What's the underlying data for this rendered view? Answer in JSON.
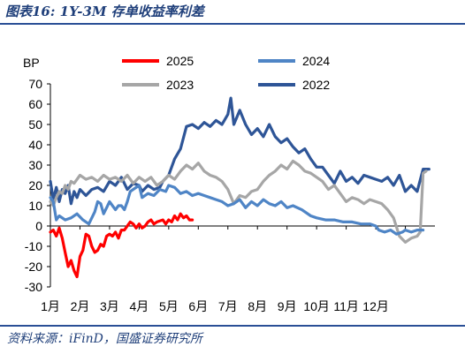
{
  "figure": {
    "title": "图表16:  1Y-3M 存单收益率利差",
    "source": "资料来源：iFinD，国盛证券研究所"
  },
  "chart_data": {
    "type": "line",
    "title": "1Y-3M 存单收益率利差",
    "ylabel": "BP",
    "xlabel": "",
    "ylim": [
      -30,
      70
    ],
    "yticks": [
      -30,
      -20,
      -10,
      0,
      10,
      20,
      30,
      40,
      50,
      60,
      70
    ],
    "xticks": [
      "1月",
      "2月",
      "3月",
      "4月",
      "5月",
      "6月",
      "7月",
      "8月",
      "9月",
      "10月",
      "11月",
      "12月"
    ],
    "x_unit": "month (1 = Jan 1, 13 = Dec 31)",
    "grid": false,
    "legend": "top, two columns",
    "series": [
      {
        "name": "2025",
        "color": "#ff0000",
        "points": [
          [
            1.0,
            -3
          ],
          [
            1.1,
            -2
          ],
          [
            1.2,
            -5
          ],
          [
            1.3,
            -1
          ],
          [
            1.4,
            -6
          ],
          [
            1.5,
            -13
          ],
          [
            1.6,
            -20
          ],
          [
            1.7,
            -17
          ],
          [
            1.8,
            -22
          ],
          [
            1.9,
            -25
          ],
          [
            2.0,
            -15
          ],
          [
            2.1,
            -12
          ],
          [
            2.2,
            -4
          ],
          [
            2.3,
            -5
          ],
          [
            2.4,
            -10
          ],
          [
            2.5,
            -13
          ],
          [
            2.6,
            -12
          ],
          [
            2.7,
            -9
          ],
          [
            2.8,
            -10
          ],
          [
            2.9,
            -5
          ],
          [
            3.0,
            -4
          ],
          [
            3.1,
            -5
          ],
          [
            3.2,
            -3
          ],
          [
            3.3,
            -6
          ],
          [
            3.4,
            -2
          ],
          [
            3.5,
            -2
          ],
          [
            3.6,
            0
          ],
          [
            3.7,
            2
          ],
          [
            3.8,
            1
          ],
          [
            3.9,
            -1
          ],
          [
            4.0,
            1
          ],
          [
            4.1,
            -1
          ],
          [
            4.2,
            0
          ],
          [
            4.3,
            2
          ],
          [
            4.4,
            3
          ],
          [
            4.5,
            1
          ],
          [
            4.6,
            2
          ],
          [
            4.8,
            3
          ],
          [
            4.9,
            1
          ],
          [
            5.0,
            3
          ],
          [
            5.1,
            2
          ],
          [
            5.2,
            5
          ],
          [
            5.3,
            3
          ],
          [
            5.4,
            6
          ],
          [
            5.5,
            4
          ],
          [
            5.6,
            5
          ],
          [
            5.7,
            3
          ],
          [
            5.8,
            3
          ]
        ]
      },
      {
        "name": "2024",
        "color": "#4f85c6",
        "points": [
          [
            1.0,
            14
          ],
          [
            1.1,
            12
          ],
          [
            1.2,
            3
          ],
          [
            1.3,
            5
          ],
          [
            1.5,
            3
          ],
          [
            1.7,
            4
          ],
          [
            1.9,
            6
          ],
          [
            2.1,
            3
          ],
          [
            2.3,
            1
          ],
          [
            2.5,
            7
          ],
          [
            2.6,
            12
          ],
          [
            2.7,
            11
          ],
          [
            2.8,
            6
          ],
          [
            2.9,
            9
          ],
          [
            3.0,
            12
          ],
          [
            3.2,
            8
          ],
          [
            3.3,
            10
          ],
          [
            3.4,
            10
          ],
          [
            3.5,
            8
          ],
          [
            3.6,
            12
          ],
          [
            3.7,
            17
          ],
          [
            3.8,
            18
          ],
          [
            4.0,
            20
          ],
          [
            4.1,
            14
          ],
          [
            4.3,
            16
          ],
          [
            4.5,
            15
          ],
          [
            4.7,
            18
          ],
          [
            4.9,
            17
          ],
          [
            5.0,
            20
          ],
          [
            5.2,
            19
          ],
          [
            5.4,
            16
          ],
          [
            5.6,
            17
          ],
          [
            5.8,
            15
          ],
          [
            6.0,
            16
          ],
          [
            6.2,
            15
          ],
          [
            6.4,
            14
          ],
          [
            6.6,
            13
          ],
          [
            6.8,
            12
          ],
          [
            7.0,
            10
          ],
          [
            7.2,
            11
          ],
          [
            7.4,
            13
          ],
          [
            7.6,
            9
          ],
          [
            7.8,
            12
          ],
          [
            8.0,
            10
          ],
          [
            8.2,
            13
          ],
          [
            8.4,
            11
          ],
          [
            8.6,
            10
          ],
          [
            8.8,
            12
          ],
          [
            9.0,
            9
          ],
          [
            9.2,
            10
          ],
          [
            9.5,
            8
          ],
          [
            9.8,
            5
          ],
          [
            10.0,
            4
          ],
          [
            10.3,
            3
          ],
          [
            10.6,
            3
          ],
          [
            10.9,
            2
          ],
          [
            11.2,
            2
          ],
          [
            11.5,
            1
          ],
          [
            11.8,
            1
          ],
          [
            12.0,
            0
          ],
          [
            12.1,
            -2
          ],
          [
            12.3,
            -3
          ],
          [
            12.5,
            -2
          ],
          [
            12.7,
            -4
          ],
          [
            12.9,
            -3
          ],
          [
            13.0,
            -2
          ],
          [
            13.2,
            -3
          ],
          [
            13.4,
            -2
          ],
          [
            13.6,
            -2
          ]
        ]
      },
      {
        "name": "2023",
        "color": "#a6a6a6",
        "points": [
          [
            1.0,
            12
          ],
          [
            1.1,
            10
          ],
          [
            1.2,
            14
          ],
          [
            1.3,
            17
          ],
          [
            1.4,
            16
          ],
          [
            1.5,
            20
          ],
          [
            1.6,
            18
          ],
          [
            1.7,
            22
          ],
          [
            1.8,
            21
          ],
          [
            2.0,
            25
          ],
          [
            2.2,
            23
          ],
          [
            2.4,
            24
          ],
          [
            2.6,
            22
          ],
          [
            2.8,
            25
          ],
          [
            3.0,
            23
          ],
          [
            3.2,
            24
          ],
          [
            3.4,
            22
          ],
          [
            3.6,
            25
          ],
          [
            3.8,
            21
          ],
          [
            4.0,
            24
          ],
          [
            4.2,
            22
          ],
          [
            4.4,
            24
          ],
          [
            4.6,
            20
          ],
          [
            4.8,
            22
          ],
          [
            5.0,
            25
          ],
          [
            5.2,
            23
          ],
          [
            5.4,
            27
          ],
          [
            5.6,
            30
          ],
          [
            5.8,
            28
          ],
          [
            6.0,
            31
          ],
          [
            6.2,
            27
          ],
          [
            6.4,
            25
          ],
          [
            6.6,
            24
          ],
          [
            6.8,
            22
          ],
          [
            7.0,
            18
          ],
          [
            7.2,
            11
          ],
          [
            7.4,
            15
          ],
          [
            7.6,
            14
          ],
          [
            7.8,
            17
          ],
          [
            8.0,
            18
          ],
          [
            8.2,
            22
          ],
          [
            8.4,
            25
          ],
          [
            8.6,
            27
          ],
          [
            8.8,
            30
          ],
          [
            9.0,
            28
          ],
          [
            9.2,
            32
          ],
          [
            9.4,
            30
          ],
          [
            9.6,
            27
          ],
          [
            9.8,
            26
          ],
          [
            10.0,
            24
          ],
          [
            10.2,
            22
          ],
          [
            10.4,
            18
          ],
          [
            10.6,
            20
          ],
          [
            10.8,
            16
          ],
          [
            11.0,
            12
          ],
          [
            11.2,
            14
          ],
          [
            11.4,
            13
          ],
          [
            11.6,
            11
          ],
          [
            11.8,
            13
          ],
          [
            12.0,
            12
          ],
          [
            12.2,
            11
          ],
          [
            12.4,
            8
          ],
          [
            12.6,
            4
          ],
          [
            12.8,
            -5
          ],
          [
            13.0,
            -8
          ],
          [
            13.2,
            -6
          ],
          [
            13.4,
            -5
          ],
          [
            13.5,
            -3
          ],
          [
            13.6,
            26
          ],
          [
            13.7,
            27
          ]
        ]
      },
      {
        "name": "2022",
        "color": "#2e5597",
        "points": [
          [
            1.0,
            22
          ],
          [
            1.1,
            13
          ],
          [
            1.2,
            19
          ],
          [
            1.3,
            12
          ],
          [
            1.4,
            18
          ],
          [
            1.5,
            16
          ],
          [
            1.6,
            20
          ],
          [
            1.7,
            11
          ],
          [
            1.8,
            17
          ],
          [
            1.9,
            14
          ],
          [
            2.0,
            18
          ],
          [
            2.2,
            15
          ],
          [
            2.4,
            18
          ],
          [
            2.6,
            19
          ],
          [
            2.8,
            17
          ],
          [
            3.0,
            22
          ],
          [
            3.2,
            20
          ],
          [
            3.4,
            24
          ],
          [
            3.6,
            18
          ],
          [
            3.8,
            21
          ],
          [
            4.0,
            20
          ],
          [
            4.1,
            17
          ],
          [
            4.3,
            20
          ],
          [
            4.5,
            18
          ],
          [
            4.7,
            19
          ],
          [
            4.8,
            22
          ],
          [
            5.0,
            25
          ],
          [
            5.2,
            33
          ],
          [
            5.4,
            38
          ],
          [
            5.6,
            49
          ],
          [
            5.8,
            50
          ],
          [
            6.0,
            48
          ],
          [
            6.2,
            51
          ],
          [
            6.4,
            49
          ],
          [
            6.6,
            52
          ],
          [
            6.8,
            50
          ],
          [
            7.0,
            55
          ],
          [
            7.1,
            63
          ],
          [
            7.2,
            50
          ],
          [
            7.4,
            57
          ],
          [
            7.6,
            50
          ],
          [
            7.8,
            45
          ],
          [
            8.0,
            48
          ],
          [
            8.2,
            44
          ],
          [
            8.4,
            50
          ],
          [
            8.6,
            44
          ],
          [
            8.8,
            41
          ],
          [
            9.0,
            43
          ],
          [
            9.2,
            39
          ],
          [
            9.4,
            36
          ],
          [
            9.6,
            38
          ],
          [
            9.8,
            33
          ],
          [
            10.0,
            29
          ],
          [
            10.2,
            29
          ],
          [
            10.4,
            25
          ],
          [
            10.6,
            21
          ],
          [
            10.8,
            27
          ],
          [
            11.0,
            22
          ],
          [
            11.2,
            24
          ],
          [
            11.4,
            21
          ],
          [
            11.6,
            25
          ],
          [
            11.8,
            24
          ],
          [
            12.0,
            23
          ],
          [
            12.2,
            22
          ],
          [
            12.4,
            24
          ],
          [
            12.6,
            20
          ],
          [
            12.8,
            25
          ],
          [
            13.0,
            17
          ],
          [
            13.2,
            20
          ],
          [
            13.4,
            17
          ],
          [
            13.6,
            28
          ],
          [
            13.8,
            28
          ]
        ]
      }
    ]
  }
}
